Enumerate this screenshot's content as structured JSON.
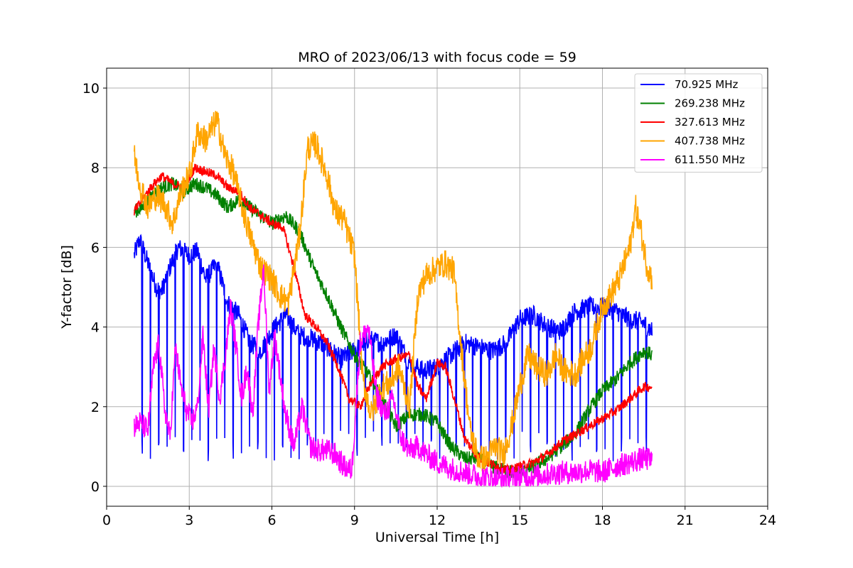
{
  "chart_data": {
    "type": "line",
    "title": "MRO of 2023/06/13 with focus code = 59",
    "xlabel": "Universal Time [h]",
    "ylabel": "Y-factor [dB]",
    "xlim": [
      0,
      24
    ],
    "ylim": [
      -0.5,
      10.5
    ],
    "xticks": [
      0,
      3,
      6,
      9,
      12,
      15,
      18,
      21,
      24
    ],
    "yticks": [
      0,
      2,
      4,
      6,
      8,
      10
    ],
    "grid": true,
    "legend_position": "top-right",
    "series": [
      {
        "name": "70.925 MHz",
        "color": "#0000ff",
        "x": [
          1.0,
          1.2,
          1.5,
          1.8,
          2.0,
          2.3,
          2.6,
          3.0,
          3.3,
          3.6,
          4.0,
          4.4,
          4.8,
          5.2,
          5.6,
          6.0,
          6.5,
          7.0,
          7.5,
          8.0,
          8.5,
          9.0,
          9.5,
          10.0,
          10.5,
          11.0,
          11.5,
          12.0,
          12.5,
          13.0,
          13.5,
          14.0,
          14.5,
          15.0,
          15.5,
          16.0,
          16.5,
          17.0,
          17.5,
          18.0,
          18.5,
          19.0,
          19.5,
          19.8
        ],
        "y": [
          5.8,
          6.2,
          5.6,
          5.0,
          4.9,
          5.5,
          6.0,
          5.8,
          5.9,
          5.2,
          5.6,
          4.6,
          4.3,
          3.6,
          3.4,
          3.9,
          4.3,
          3.8,
          3.7,
          3.5,
          3.2,
          3.4,
          3.7,
          3.6,
          3.8,
          3.1,
          2.9,
          3.0,
          3.3,
          3.6,
          3.5,
          3.4,
          3.6,
          4.2,
          4.3,
          4.0,
          3.9,
          4.4,
          4.5,
          4.5,
          4.4,
          4.2,
          4.1,
          3.9
        ],
        "dip_period_h": 0.3,
        "dip_low": 0.6
      },
      {
        "name": "269.238 MHz",
        "color": "#008000",
        "x": [
          1.0,
          1.3,
          1.6,
          2.0,
          2.4,
          2.8,
          3.2,
          3.6,
          4.0,
          4.4,
          4.8,
          5.2,
          5.6,
          6.0,
          6.5,
          7.0,
          7.5,
          8.0,
          8.5,
          9.0,
          9.5,
          10.0,
          10.5,
          11.0,
          11.5,
          12.0,
          12.5,
          13.0,
          13.5,
          14.0,
          14.5,
          15.0,
          15.5,
          16.0,
          16.5,
          17.0,
          17.5,
          18.0,
          18.5,
          19.0,
          19.5,
          19.8
        ],
        "y": [
          6.9,
          7.0,
          7.3,
          7.5,
          7.6,
          7.4,
          7.6,
          7.5,
          7.3,
          7.0,
          7.2,
          7.0,
          6.8,
          6.6,
          6.8,
          6.4,
          5.5,
          4.8,
          4.0,
          3.3,
          2.8,
          2.2,
          1.5,
          1.8,
          1.8,
          1.6,
          1.0,
          0.7,
          0.7,
          0.5,
          0.4,
          0.3,
          0.5,
          0.7,
          1.0,
          1.3,
          1.9,
          2.4,
          2.7,
          3.1,
          3.4,
          3.3
        ]
      },
      {
        "name": "327.613 MHz",
        "color": "#ff0000",
        "x": [
          1.0,
          1.3,
          1.6,
          2.0,
          2.4,
          2.8,
          3.2,
          3.6,
          4.0,
          4.4,
          4.8,
          5.2,
          5.6,
          6.0,
          6.4,
          6.8,
          7.2,
          7.6,
          8.0,
          8.4,
          8.8,
          9.2,
          9.6,
          10.0,
          10.5,
          11.0,
          11.3,
          11.6,
          12.0,
          12.3,
          12.7,
          13.0,
          13.4,
          13.8,
          14.2,
          14.6,
          15.0,
          15.5,
          16.0,
          16.5,
          17.0,
          17.5,
          18.0,
          18.5,
          19.0,
          19.5,
          19.8
        ],
        "y": [
          6.9,
          7.2,
          7.5,
          7.8,
          7.6,
          7.5,
          8.0,
          7.9,
          7.8,
          7.5,
          7.4,
          7.0,
          6.8,
          6.6,
          6.5,
          5.5,
          4.3,
          4.0,
          3.6,
          3.0,
          2.2,
          2.0,
          2.6,
          3.0,
          3.2,
          3.3,
          2.5,
          2.2,
          3.1,
          3.0,
          2.0,
          1.2,
          0.8,
          0.6,
          0.5,
          0.4,
          0.5,
          0.6,
          0.8,
          1.1,
          1.3,
          1.5,
          1.7,
          1.9,
          2.2,
          2.5,
          2.5
        ]
      },
      {
        "name": "407.738 MHz",
        "color": "#ffa500",
        "x": [
          1.0,
          1.2,
          1.5,
          1.8,
          2.1,
          2.4,
          2.7,
          3.0,
          3.3,
          3.6,
          4.0,
          4.3,
          4.6,
          5.0,
          5.3,
          5.6,
          6.0,
          6.3,
          6.6,
          7.0,
          7.3,
          7.6,
          8.0,
          8.3,
          8.6,
          9.0,
          9.3,
          9.6,
          10.0,
          10.3,
          10.6,
          11.0,
          11.3,
          11.6,
          12.0,
          12.3,
          12.6,
          12.9,
          13.2,
          13.5,
          13.8,
          14.1,
          14.4,
          14.7,
          15.0,
          15.3,
          15.6,
          16.0,
          16.3,
          16.6,
          17.0,
          17.3,
          17.6,
          18.0,
          18.3,
          18.6,
          19.0,
          19.2,
          19.4,
          19.6,
          19.8
        ],
        "y": [
          8.3,
          7.6,
          7.0,
          7.3,
          7.1,
          6.6,
          7.4,
          7.8,
          8.9,
          8.7,
          9.2,
          8.3,
          7.9,
          6.8,
          6.1,
          5.5,
          5.2,
          4.8,
          4.6,
          6.3,
          8.5,
          8.6,
          7.8,
          6.9,
          6.7,
          5.8,
          2.7,
          1.8,
          2.5,
          2.6,
          3.0,
          2.0,
          4.8,
          5.3,
          5.5,
          5.6,
          5.4,
          3.3,
          1.4,
          0.7,
          0.7,
          1.0,
          0.8,
          1.5,
          2.5,
          3.3,
          3.0,
          2.8,
          3.3,
          2.9,
          2.8,
          3.2,
          3.5,
          4.5,
          4.8,
          5.2,
          6.0,
          7.0,
          6.4,
          5.6,
          5.2
        ]
      },
      {
        "name": "611.550 MHz",
        "color": "#ff00ff",
        "x": [
          1.0,
          1.2,
          1.5,
          1.7,
          1.9,
          2.1,
          2.3,
          2.5,
          2.7,
          2.9,
          3.1,
          3.3,
          3.5,
          3.7,
          3.9,
          4.1,
          4.3,
          4.5,
          4.7,
          4.9,
          5.1,
          5.3,
          5.5,
          5.7,
          5.9,
          6.1,
          6.3,
          6.5,
          6.8,
          7.1,
          7.4,
          7.7,
          8.0,
          8.3,
          8.6,
          8.9,
          9.2,
          9.5,
          9.8,
          10.1,
          10.4,
          10.7,
          11.0,
          11.3,
          11.6,
          12.0,
          12.5,
          13.0,
          13.5,
          14.0,
          14.5,
          15.0,
          15.5,
          16.0,
          16.5,
          17.0,
          17.5,
          18.0,
          18.5,
          19.0,
          19.5,
          19.8
        ],
        "y": [
          1.5,
          1.6,
          1.4,
          3.0,
          3.6,
          2.0,
          1.2,
          3.5,
          2.5,
          1.9,
          1.6,
          2.0,
          3.8,
          1.9,
          3.5,
          2.2,
          3.2,
          4.5,
          3.5,
          2.2,
          3.0,
          1.8,
          4.0,
          5.5,
          2.4,
          3.8,
          2.8,
          1.8,
          1.0,
          2.0,
          1.0,
          0.9,
          0.9,
          0.8,
          0.5,
          0.4,
          3.6,
          4.0,
          2.3,
          1.8,
          2.2,
          1.2,
          0.9,
          1.0,
          0.8,
          0.6,
          0.45,
          0.35,
          0.25,
          0.2,
          0.2,
          0.25,
          0.25,
          0.3,
          0.35,
          0.35,
          0.4,
          0.35,
          0.5,
          0.6,
          0.7,
          0.65
        ]
      }
    ]
  }
}
